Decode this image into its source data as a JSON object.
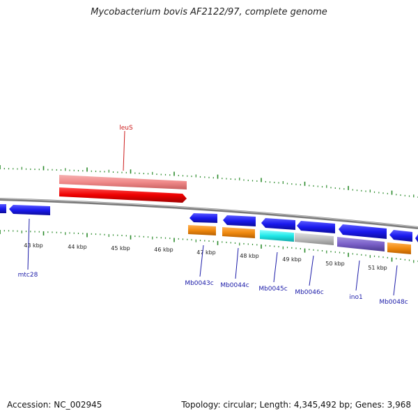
{
  "title": "Mycobacterium bovis AF2122/97, complete genome",
  "footer": {
    "accession": "Accession: NC_002945",
    "summary": "Topology: circular; Length: 4,345,492 bp; Genes: 3,968"
  },
  "colors": {
    "tick": "#2a8a2a",
    "backbone": "#808080",
    "forward_blue": "#1a1aee",
    "leuS_light": "#f08a8a",
    "leuS": "#ee0000",
    "orange": "#f08a10",
    "cyan": "#20e8e8",
    "gray": "#bdbdbd",
    "purple": "#7a60c8"
  },
  "kbp_labels": [
    "43 kbp",
    "44 kbp",
    "45 kbp",
    "46 kbp",
    "47 kbp",
    "48 kbp",
    "49 kbp",
    "50 kbp",
    "51 kbp"
  ],
  "gene_labels": {
    "leuS": "leuS",
    "mtc28": "mtc28",
    "Mb0043c": "Mb0043c",
    "Mb0044c": "Mb0044c",
    "Mb0045c": "Mb0045c",
    "Mb0046c": "Mb0046c",
    "ino1": "ino1",
    "Mb0048c": "Mb0048c"
  }
}
